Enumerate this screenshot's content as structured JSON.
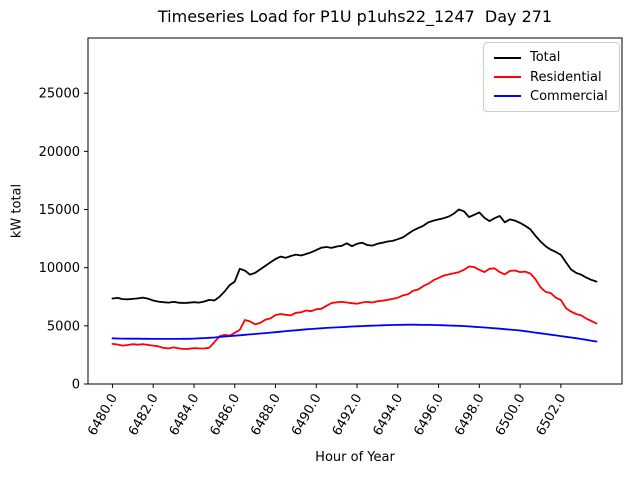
{
  "chart_data": {
    "type": "line",
    "title": "Timeseries Load for P1U p1uhs22_1247  Day 271",
    "xlabel": "Hour of Year",
    "ylabel": "kW total",
    "xlim": [
      6478.8,
      6505.0
    ],
    "ylim": [
      0,
      29745
    ],
    "grid": false,
    "legend_position": "upper right",
    "x_ticks": [
      6480,
      6482,
      6484,
      6486,
      6488,
      6490,
      6492,
      6494,
      6496,
      6498,
      6500,
      6502
    ],
    "x_tick_labels": [
      "6480.0",
      "6482.0",
      "6484.0",
      "6486.0",
      "6488.0",
      "6490.0",
      "6492.0",
      "6494.0",
      "6496.0",
      "6498.0",
      "6500.0",
      "6502.0"
    ],
    "y_ticks": [
      0,
      5000,
      10000,
      15000,
      20000,
      25000
    ],
    "y_tick_labels": [
      "0",
      "5000",
      "10000",
      "15000",
      "20000",
      "25000"
    ],
    "x": [
      6480.0,
      6480.25,
      6480.5,
      6480.75,
      6481.0,
      6481.25,
      6481.5,
      6481.75,
      6482.0,
      6482.25,
      6482.5,
      6482.75,
      6483.0,
      6483.25,
      6483.5,
      6483.75,
      6484.0,
      6484.25,
      6484.5,
      6484.75,
      6485.0,
      6485.25,
      6485.5,
      6485.75,
      6486.0,
      6486.25,
      6486.5,
      6486.75,
      6487.0,
      6487.25,
      6487.5,
      6487.75,
      6488.0,
      6488.25,
      6488.5,
      6488.75,
      6489.0,
      6489.25,
      6489.5,
      6489.75,
      6490.0,
      6490.25,
      6490.5,
      6490.75,
      6491.0,
      6491.25,
      6491.5,
      6491.75,
      6492.0,
      6492.25,
      6492.5,
      6492.75,
      6493.0,
      6493.25,
      6493.5,
      6493.75,
      6494.0,
      6494.25,
      6494.5,
      6494.75,
      6495.0,
      6495.25,
      6495.5,
      6495.75,
      6496.0,
      6496.25,
      6496.5,
      6496.75,
      6497.0,
      6497.25,
      6497.5,
      6497.75,
      6498.0,
      6498.25,
      6498.5,
      6498.75,
      6499.0,
      6499.25,
      6499.5,
      6499.75,
      6500.0,
      6500.25,
      6500.5,
      6500.75,
      6501.0,
      6501.25,
      6501.5,
      6501.75,
      6502.0,
      6502.25,
      6502.5,
      6502.75,
      6503.0,
      6503.25,
      6503.5,
      6503.75
    ],
    "series": [
      {
        "name": "Total",
        "color": "#000000",
        "values": [
          7350,
          7400,
          7300,
          7280,
          7320,
          7360,
          7430,
          7330,
          7180,
          7080,
          7030,
          7000,
          7060,
          6990,
          6960,
          6990,
          7030,
          7000,
          7090,
          7230,
          7180,
          7500,
          7950,
          8500,
          8800,
          9900,
          9750,
          9400,
          9550,
          9850,
          10150,
          10450,
          10750,
          10950,
          10850,
          11000,
          11120,
          11050,
          11180,
          11320,
          11520,
          11720,
          11780,
          11700,
          11820,
          11880,
          12100,
          11850,
          12050,
          12150,
          11950,
          11900,
          12050,
          12150,
          12250,
          12300,
          12450,
          12600,
          12900,
          13200,
          13400,
          13600,
          13900,
          14050,
          14150,
          14250,
          14400,
          14650,
          15000,
          14850,
          14350,
          14550,
          14750,
          14300,
          14000,
          14250,
          14450,
          13900,
          14150,
          14050,
          13850,
          13600,
          13300,
          12750,
          12250,
          11850,
          11550,
          11350,
          11100,
          10450,
          9850,
          9550,
          9400,
          9150,
          8950,
          8800
        ]
      },
      {
        "name": "Residential",
        "color": "#ff0000",
        "values": [
          3450,
          3400,
          3300,
          3350,
          3420,
          3380,
          3430,
          3350,
          3300,
          3240,
          3100,
          3060,
          3150,
          3060,
          3010,
          3030,
          3090,
          3060,
          3050,
          3120,
          3600,
          4100,
          4220,
          4150,
          4400,
          4650,
          5500,
          5380,
          5120,
          5250,
          5520,
          5640,
          5920,
          6020,
          5950,
          5900,
          6120,
          6160,
          6320,
          6260,
          6420,
          6470,
          6720,
          6960,
          7020,
          7060,
          7010,
          6950,
          6900,
          7010,
          7060,
          7010,
          7110,
          7160,
          7230,
          7320,
          7420,
          7620,
          7720,
          8020,
          8120,
          8420,
          8620,
          8920,
          9120,
          9320,
          9420,
          9520,
          9620,
          9820,
          10100,
          10050,
          9820,
          9620,
          9900,
          9950,
          9620,
          9420,
          9720,
          9760,
          9620,
          9660,
          9500,
          9020,
          8320,
          7920,
          7820,
          7420,
          7220,
          6520,
          6220,
          6020,
          5900,
          5620,
          5420,
          5200
        ]
      },
      {
        "name": "Commercial",
        "color": "#0000ff",
        "values": [
          3925,
          3915,
          3905,
          3895,
          3900,
          3895,
          3890,
          3885,
          3880,
          3880,
          3875,
          3875,
          3880,
          3880,
          3885,
          3890,
          3900,
          3925,
          3950,
          3975,
          4000,
          4040,
          4080,
          4115,
          4150,
          4190,
          4230,
          4265,
          4300,
          4340,
          4380,
          4415,
          4450,
          4500,
          4550,
          4585,
          4620,
          4660,
          4700,
          4730,
          4760,
          4790,
          4820,
          4845,
          4870,
          4895,
          4920,
          4940,
          4960,
          4980,
          5000,
          5015,
          5030,
          5045,
          5060,
          5070,
          5080,
          5090,
          5100,
          5095,
          5090,
          5085,
          5080,
          5070,
          5060,
          5045,
          5030,
          5015,
          5000,
          4975,
          4950,
          4920,
          4890,
          4855,
          4820,
          4785,
          4750,
          4715,
          4680,
          4640,
          4600,
          4540,
          4480,
          4420,
          4360,
          4300,
          4240,
          4180,
          4120,
          4060,
          4000,
          3940,
          3870,
          3800,
          3725,
          3650
        ]
      }
    ]
  }
}
